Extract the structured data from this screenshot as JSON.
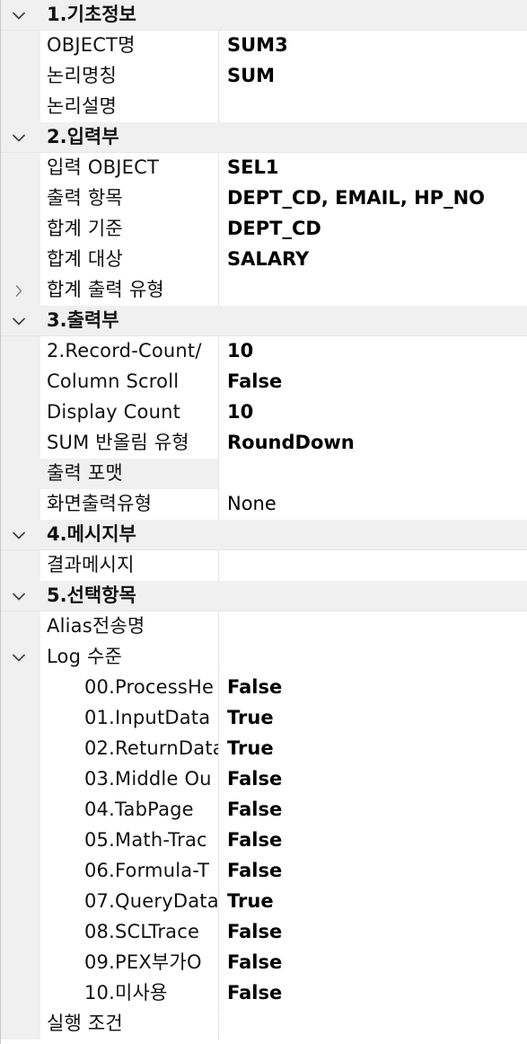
{
  "rows": [
    {
      "type": "category",
      "label": "1.기초정보",
      "expanded": true
    },
    {
      "type": "prop",
      "name": "OBJECT명",
      "value": "SUM3",
      "bold": true
    },
    {
      "type": "prop",
      "name": "논리명칭",
      "value": "SUM",
      "bold": true
    },
    {
      "type": "prop",
      "name": "논리설명",
      "value": ""
    },
    {
      "type": "category",
      "label": "2.입력부",
      "expanded": true
    },
    {
      "type": "prop",
      "name": "입력 OBJECT",
      "value": "SEL1",
      "bold": true
    },
    {
      "type": "prop",
      "name": "출력 항목",
      "value": "DEPT_CD, EMAIL, HP_NO",
      "bold": true
    },
    {
      "type": "prop",
      "name": "합계 기준",
      "value": "DEPT_CD",
      "bold": true
    },
    {
      "type": "prop",
      "name": "합계 대상",
      "value": "SALARY",
      "bold": true
    },
    {
      "type": "prop",
      "name": "합계 출력 유형",
      "value": "",
      "expander": "collapsed"
    },
    {
      "type": "category",
      "label": "3.출력부",
      "expanded": true
    },
    {
      "type": "prop",
      "name": "2.Record-Count/",
      "value": "10",
      "bold": true
    },
    {
      "type": "prop",
      "name": "Column Scroll",
      "value": "False",
      "bold": true
    },
    {
      "type": "prop",
      "name": "Display Count",
      "value": "10",
      "bold": true
    },
    {
      "type": "prop",
      "name": "SUM 반올림 유형",
      "value": "RoundDown",
      "bold": true
    },
    {
      "type": "prop",
      "name": "출력 포맷",
      "value": "",
      "shaded": true
    },
    {
      "type": "prop",
      "name": "화면출력유형",
      "value": "None",
      "bold": false
    },
    {
      "type": "category",
      "label": "4.메시지부",
      "expanded": true
    },
    {
      "type": "prop",
      "name": "결과메시지",
      "value": ""
    },
    {
      "type": "category",
      "label": "5.선택항목",
      "expanded": true
    },
    {
      "type": "prop",
      "name": "Alias전송명",
      "value": ""
    },
    {
      "type": "prop",
      "name": "Log 수준",
      "value": "",
      "expander": "expanded"
    },
    {
      "type": "prop",
      "level": 2,
      "name": "00.ProcessHe",
      "value": "False",
      "bold": true
    },
    {
      "type": "prop",
      "level": 2,
      "name": "01.InputData",
      "value": "True",
      "bold": true
    },
    {
      "type": "prop",
      "level": 2,
      "name": "02.ReturnData",
      "value": "True",
      "bold": true
    },
    {
      "type": "prop",
      "level": 2,
      "name": "03.Middle Ou",
      "value": "False",
      "bold": true
    },
    {
      "type": "prop",
      "level": 2,
      "name": "04.TabPage",
      "value": "False",
      "bold": true
    },
    {
      "type": "prop",
      "level": 2,
      "name": "05.Math-Trac",
      "value": "False",
      "bold": true
    },
    {
      "type": "prop",
      "level": 2,
      "name": "06.Formula-T",
      "value": "False",
      "bold": true
    },
    {
      "type": "prop",
      "level": 2,
      "name": "07.QueryData",
      "value": "True",
      "bold": true
    },
    {
      "type": "prop",
      "level": 2,
      "name": "08.SCLTrace",
      "value": "False",
      "bold": true
    },
    {
      "type": "prop",
      "level": 2,
      "name": "09.PEX부가O",
      "value": "False",
      "bold": true
    },
    {
      "type": "prop",
      "level": 2,
      "name": "10.미사용",
      "value": "False",
      "bold": true
    },
    {
      "type": "prop",
      "name": "실행 조건",
      "value": ""
    }
  ]
}
